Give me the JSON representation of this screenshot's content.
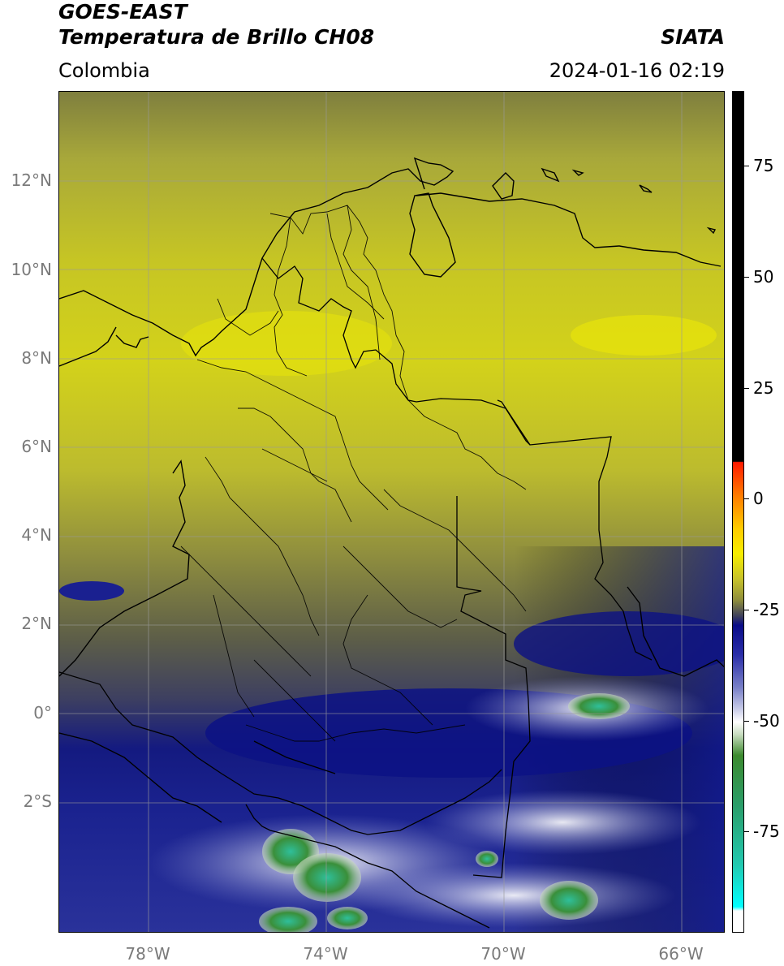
{
  "header": {
    "satellite": "GOES-EAST",
    "product": "Temperatura de Brillo CH08",
    "agency": "SIATA",
    "region": "Colombia",
    "datetime": "2024-01-16 02:19"
  },
  "axes": {
    "lat_labels": [
      "12°N",
      "10°N",
      "8°N",
      "6°N",
      "4°N",
      "2°N",
      "0°",
      "2°S"
    ],
    "lon_labels": [
      "78°W",
      "74°W",
      "70°W",
      "66°W"
    ]
  },
  "colorbar": {
    "ticks": [
      "75",
      "50",
      "25",
      "0",
      "-25",
      "-50",
      "-75"
    ],
    "colors": {
      "warm": "#000000",
      "red": "#ff1a00",
      "yellow": "#f7ee00",
      "olive": "#8f8e3b",
      "blue": "#0a0c88",
      "white": "#ffffff",
      "green": "#3c8a2e",
      "cyan": "#00ffff"
    }
  },
  "map": {
    "overlays": [
      "coastline",
      "country-borders",
      "department-borders",
      "graticule"
    ]
  }
}
